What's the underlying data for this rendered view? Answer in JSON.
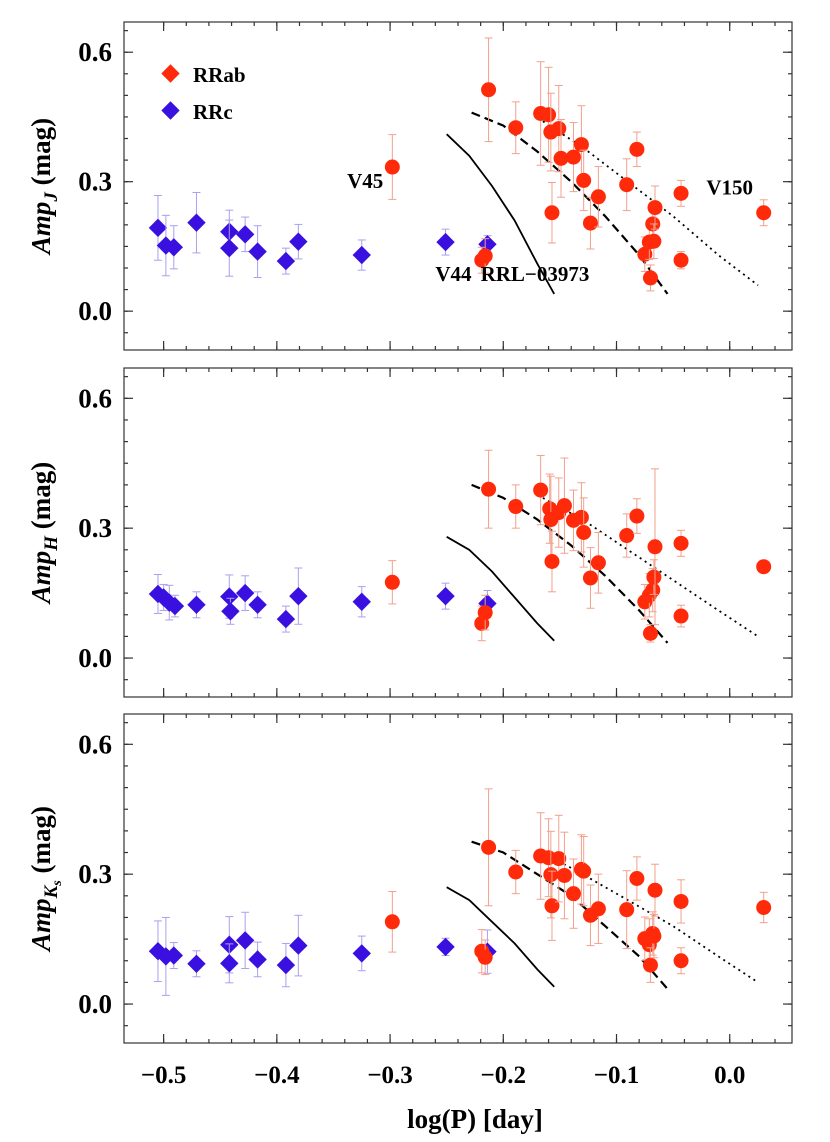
{
  "chart_data": {
    "type": "scatter",
    "xlabel": "log(P) [day]",
    "xlim": [
      -0.535,
      0.055
    ],
    "x_ticks": [
      -0.5,
      -0.4,
      -0.3,
      -0.2,
      -0.1,
      0.0
    ],
    "x_tick_labels": [
      "−0.5",
      "−0.4",
      "−0.3",
      "−0.2",
      "−0.1",
      "0.0"
    ],
    "ylim": [
      -0.09,
      0.67
    ],
    "y_ticks": [
      0.0,
      0.3,
      0.6
    ],
    "y_tick_labels": [
      "0.0",
      "0.3",
      "0.6"
    ],
    "colors": {
      "RRab": "#ff2a0a",
      "RRc": "#3a10e0",
      "errbar_RRab": "#f2a08c",
      "errbar_RRc": "#a9a0ee",
      "curve": "#000000"
    },
    "legend": {
      "placement": "top-left",
      "entries": [
        "RRab",
        "RRc"
      ]
    },
    "panels": [
      {
        "ylabel": "Amp_J (mag)",
        "ylabel_main": "Amp",
        "ylabel_sub": "J",
        "ylabel_unit": " (mag)",
        "annotations": [
          {
            "text": "V45",
            "x": -0.322,
            "y": 0.285
          },
          {
            "text": "V44",
            "x": -0.244,
            "y": 0.07
          },
          {
            "text": "RRL−03973",
            "x": -0.172,
            "y": 0.07
          },
          {
            "text": "V150",
            "x": 0.0,
            "y": 0.27
          }
        ],
        "series": [
          {
            "name": "RRc",
            "points": [
              [
                -0.505,
                0.193,
                0.075
              ],
              [
                -0.498,
                0.152,
                0.07
              ],
              [
                -0.491,
                0.148,
                0.05
              ],
              [
                -0.471,
                0.205,
                0.07
              ],
              [
                -0.442,
                0.184,
                0.05
              ],
              [
                -0.442,
                0.146,
                0.065
              ],
              [
                -0.428,
                0.178,
                0.04
              ],
              [
                -0.417,
                0.138,
                0.06
              ],
              [
                -0.392,
                0.116,
                0.03
              ],
              [
                -0.381,
                0.161,
                0.04
              ],
              [
                -0.325,
                0.13,
                0.035
              ],
              [
                -0.251,
                0.16,
                0.03
              ],
              [
                -0.214,
                0.155,
                0.02
              ]
            ]
          },
          {
            "name": "RRab",
            "points": [
              [
                -0.298,
                0.334,
                0.075
              ],
              [
                -0.219,
                0.118,
                0.03
              ],
              [
                -0.216,
                0.128,
                0.04
              ],
              [
                -0.213,
                0.513,
                0.12
              ],
              [
                -0.189,
                0.425,
                0.06
              ],
              [
                -0.167,
                0.458,
                0.12
              ],
              [
                -0.16,
                0.455,
                0.11
              ],
              [
                -0.158,
                0.415,
                0.09
              ],
              [
                -0.157,
                0.228,
                0.07
              ],
              [
                -0.151,
                0.423,
                0.1
              ],
              [
                -0.149,
                0.354,
                0.09
              ],
              [
                -0.138,
                0.357,
                0.08
              ],
              [
                -0.131,
                0.386,
                0.09
              ],
              [
                -0.129,
                0.303,
                0.07
              ],
              [
                -0.123,
                0.204,
                0.06
              ],
              [
                -0.116,
                0.265,
                0.07
              ],
              [
                -0.091,
                0.293,
                0.06
              ],
              [
                -0.082,
                0.375,
                0.04
              ],
              [
                -0.075,
                0.132,
                0.04
              ],
              [
                -0.071,
                0.16,
                0.04
              ],
              [
                -0.07,
                0.077,
                0.03
              ],
              [
                -0.068,
                0.202,
                0.04
              ],
              [
                -0.067,
                0.162,
                0.04
              ],
              [
                -0.066,
                0.24,
                0.05
              ],
              [
                -0.043,
                0.273,
                0.03
              ],
              [
                -0.043,
                0.118,
                0.02
              ],
              [
                0.03,
                0.228,
                0.03
              ]
            ]
          }
        ],
        "curves": {
          "solid": [
            [
              -0.25,
              0.41
            ],
            [
              -0.23,
              0.36
            ],
            [
              -0.21,
              0.29
            ],
            [
              -0.19,
              0.21
            ],
            [
              -0.17,
              0.11
            ],
            [
              -0.155,
              0.04
            ]
          ],
          "dashed": [
            [
              -0.228,
              0.46
            ],
            [
              -0.2,
              0.43
            ],
            [
              -0.17,
              0.37
            ],
            [
              -0.14,
              0.3
            ],
            [
              -0.11,
              0.22
            ],
            [
              -0.08,
              0.13
            ],
            [
              -0.055,
              0.04
            ]
          ],
          "dotted": [
            [
              -0.165,
              0.44
            ],
            [
              -0.13,
              0.38
            ],
            [
              -0.09,
              0.3
            ],
            [
              -0.05,
              0.22
            ],
            [
              -0.01,
              0.13
            ],
            [
              0.025,
              0.06
            ]
          ]
        }
      },
      {
        "ylabel": "Amp_H (mag)",
        "ylabel_main": "Amp",
        "ylabel_sub": "H",
        "ylabel_unit": " (mag)",
        "annotations": [],
        "series": [
          {
            "name": "RRc",
            "points": [
              [
                -0.505,
                0.148,
                0.045
              ],
              [
                -0.5,
                0.14,
                0.03
              ],
              [
                -0.495,
                0.128,
                0.04
              ],
              [
                -0.49,
                0.12,
                0.025
              ],
              [
                -0.471,
                0.123,
                0.03
              ],
              [
                -0.442,
                0.142,
                0.05
              ],
              [
                -0.441,
                0.108,
                0.03
              ],
              [
                -0.428,
                0.15,
                0.04
              ],
              [
                -0.417,
                0.123,
                0.03
              ],
              [
                -0.392,
                0.09,
                0.03
              ],
              [
                -0.381,
                0.143,
                0.065
              ],
              [
                -0.325,
                0.13,
                0.035
              ],
              [
                -0.251,
                0.143,
                0.03
              ],
              [
                -0.214,
                0.126,
                0.03
              ]
            ]
          },
          {
            "name": "RRab",
            "points": [
              [
                -0.298,
                0.175,
                0.05
              ],
              [
                -0.219,
                0.08,
                0.04
              ],
              [
                -0.216,
                0.105,
                0.04
              ],
              [
                -0.213,
                0.39,
                0.09
              ],
              [
                -0.189,
                0.35,
                0.05
              ],
              [
                -0.167,
                0.388,
                0.08
              ],
              [
                -0.159,
                0.345,
                0.08
              ],
              [
                -0.158,
                0.32,
                0.1
              ],
              [
                -0.157,
                0.223,
                0.07
              ],
              [
                -0.151,
                0.336,
                0.08
              ],
              [
                -0.146,
                0.352,
                0.11
              ],
              [
                -0.138,
                0.318,
                0.07
              ],
              [
                -0.131,
                0.325,
                0.08
              ],
              [
                -0.129,
                0.29,
                0.08
              ],
              [
                -0.123,
                0.185,
                0.07
              ],
              [
                -0.116,
                0.22,
                0.07
              ],
              [
                -0.091,
                0.283,
                0.05
              ],
              [
                -0.082,
                0.328,
                0.04
              ],
              [
                -0.075,
                0.13,
                0.04
              ],
              [
                -0.071,
                0.145,
                0.05
              ],
              [
                -0.07,
                0.057,
                0.02
              ],
              [
                -0.068,
                0.157,
                0.05
              ],
              [
                -0.067,
                0.187,
                0.04
              ],
              [
                -0.066,
                0.257,
                0.18
              ],
              [
                -0.043,
                0.265,
                0.03
              ],
              [
                -0.043,
                0.097,
                0.025
              ],
              [
                0.03,
                0.211,
                0.01
              ]
            ]
          }
        ],
        "curves": {
          "solid": [
            [
              -0.25,
              0.28
            ],
            [
              -0.23,
              0.25
            ],
            [
              -0.21,
              0.2
            ],
            [
              -0.19,
              0.14
            ],
            [
              -0.17,
              0.08
            ],
            [
              -0.155,
              0.04
            ]
          ],
          "dashed": [
            [
              -0.228,
              0.4
            ],
            [
              -0.2,
              0.37
            ],
            [
              -0.17,
              0.32
            ],
            [
              -0.14,
              0.26
            ],
            [
              -0.11,
              0.19
            ],
            [
              -0.08,
              0.11
            ],
            [
              -0.055,
              0.035
            ]
          ],
          "dotted": [
            [
              -0.165,
              0.37
            ],
            [
              -0.13,
              0.32
            ],
            [
              -0.09,
              0.25
            ],
            [
              -0.05,
              0.18
            ],
            [
              -0.01,
              0.11
            ],
            [
              0.025,
              0.05
            ]
          ]
        }
      },
      {
        "ylabel": "Amp_Ks (mag)",
        "ylabel_main": "Amp",
        "ylabel_sub": "K",
        "ylabel_subsub": "s",
        "ylabel_unit": " (mag)",
        "annotations": [],
        "series": [
          {
            "name": "RRc",
            "points": [
              [
                -0.505,
                0.122,
                0.07
              ],
              [
                -0.498,
                0.11,
                0.09
              ],
              [
                -0.491,
                0.112,
                0.03
              ],
              [
                -0.471,
                0.093,
                0.03
              ],
              [
                -0.442,
                0.137,
                0.065
              ],
              [
                -0.442,
                0.094,
                0.045
              ],
              [
                -0.428,
                0.147,
                0.065
              ],
              [
                -0.417,
                0.103,
                0.04
              ],
              [
                -0.392,
                0.09,
                0.05
              ],
              [
                -0.381,
                0.135,
                0.07
              ],
              [
                -0.325,
                0.117,
                0.04
              ],
              [
                -0.251,
                0.132,
                0.02
              ],
              [
                -0.214,
                0.121,
                0.05
              ]
            ]
          },
          {
            "name": "RRab",
            "points": [
              [
                -0.298,
                0.19,
                0.07
              ],
              [
                -0.219,
                0.122,
                0.05
              ],
              [
                -0.216,
                0.108,
                0.04
              ],
              [
                -0.213,
                0.362,
                0.135
              ],
              [
                -0.189,
                0.305,
                0.05
              ],
              [
                -0.167,
                0.342,
                0.1
              ],
              [
                -0.16,
                0.338,
                0.09
              ],
              [
                -0.158,
                0.299,
                0.1
              ],
              [
                -0.157,
                0.227,
                0.08
              ],
              [
                -0.151,
                0.336,
                0.1
              ],
              [
                -0.146,
                0.297,
                0.1
              ],
              [
                -0.138,
                0.255,
                0.08
              ],
              [
                -0.131,
                0.311,
                0.08
              ],
              [
                -0.129,
                0.307,
                0.08
              ],
              [
                -0.123,
                0.205,
                0.07
              ],
              [
                -0.116,
                0.22,
                0.08
              ],
              [
                -0.091,
                0.218,
                0.09
              ],
              [
                -0.082,
                0.29,
                0.05
              ],
              [
                -0.075,
                0.151,
                0.05
              ],
              [
                -0.071,
                0.137,
                0.06
              ],
              [
                -0.07,
                0.09,
                0.04
              ],
              [
                -0.068,
                0.163,
                0.05
              ],
              [
                -0.067,
                0.157,
                0.05
              ],
              [
                -0.066,
                0.263,
                0.06
              ],
              [
                -0.043,
                0.237,
                0.05
              ],
              [
                -0.043,
                0.1,
                0.03
              ],
              [
                0.03,
                0.223,
                0.035
              ]
            ]
          }
        ],
        "curves": {
          "solid": [
            [
              -0.25,
              0.27
            ],
            [
              -0.23,
              0.24
            ],
            [
              -0.21,
              0.19
            ],
            [
              -0.19,
              0.14
            ],
            [
              -0.17,
              0.08
            ],
            [
              -0.155,
              0.04
            ]
          ],
          "dashed": [
            [
              -0.228,
              0.375
            ],
            [
              -0.2,
              0.35
            ],
            [
              -0.17,
              0.3
            ],
            [
              -0.14,
              0.25
            ],
            [
              -0.11,
              0.18
            ],
            [
              -0.08,
              0.11
            ],
            [
              -0.055,
              0.035
            ]
          ],
          "dotted": [
            [
              -0.165,
              0.35
            ],
            [
              -0.13,
              0.3
            ],
            [
              -0.09,
              0.24
            ],
            [
              -0.05,
              0.18
            ],
            [
              -0.01,
              0.11
            ],
            [
              0.025,
              0.05
            ]
          ]
        }
      }
    ]
  }
}
